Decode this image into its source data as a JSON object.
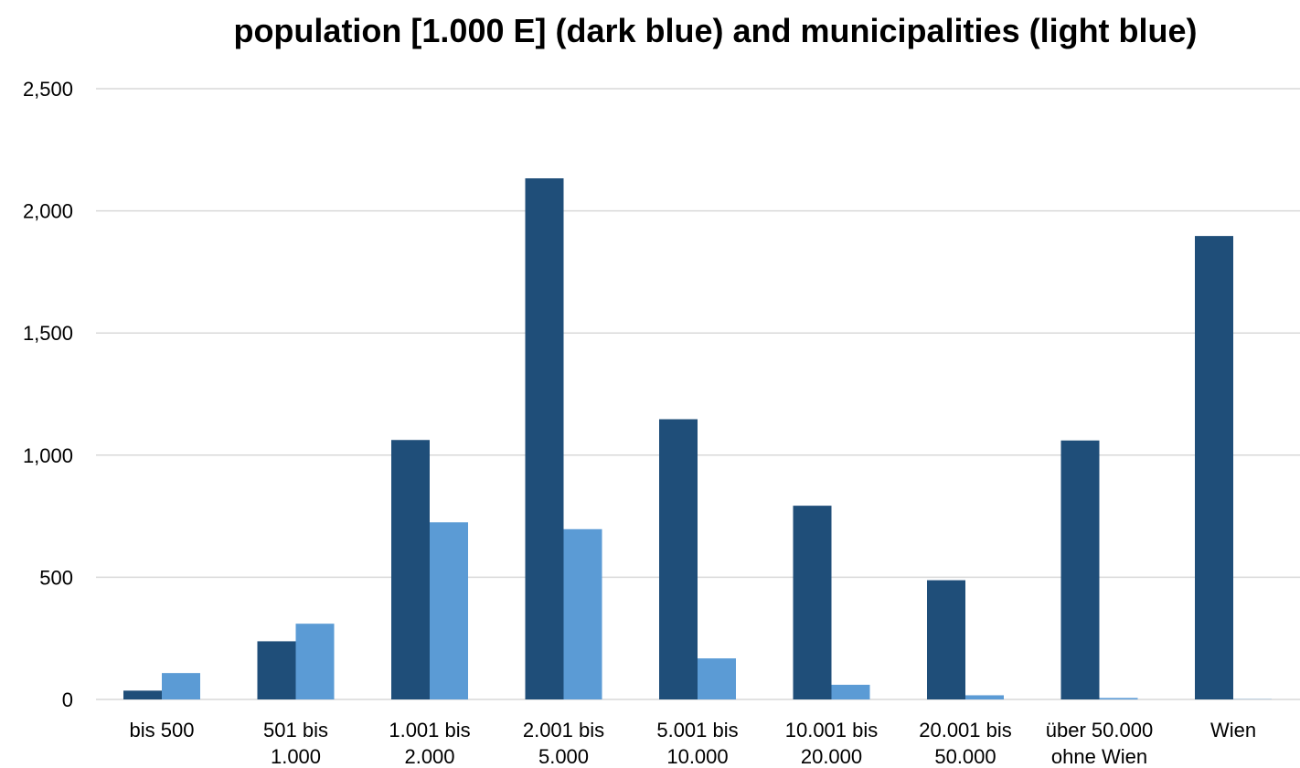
{
  "chart_data": {
    "type": "bar",
    "title": "population [1.000 E] (dark blue) and municipalities (light blue)",
    "xlabel": "",
    "ylabel": "",
    "categories": [
      [
        "bis 500"
      ],
      [
        "501 bis",
        "1.000"
      ],
      [
        "1.001 bis",
        "2.000"
      ],
      [
        "2.001 bis",
        "5.000"
      ],
      [
        "5.001 bis",
        "10.000"
      ],
      [
        "10.001 bis",
        "20.000"
      ],
      [
        "20.001 bis",
        "50.000"
      ],
      [
        "über 50.000",
        "ohne Wien"
      ],
      [
        "Wien"
      ]
    ],
    "series": [
      {
        "color": "#1f4e79",
        "values": [
          36,
          238,
          1062,
          2133,
          1147,
          793,
          488,
          1060,
          1897
        ]
      },
      {
        "color": "#5b9bd5",
        "values": [
          108,
          310,
          725,
          697,
          168,
          60,
          17,
          6,
          1
        ]
      }
    ],
    "ylim": [
      0,
      2500
    ],
    "yticks": [
      0,
      500,
      1000,
      1500,
      2000,
      2500
    ],
    "ytick_labels": [
      "0",
      "500",
      "1,000",
      "1,500",
      "2,000",
      "2,500"
    ],
    "grid": true,
    "gridline_color": "#d9d9d9",
    "legend": "none"
  }
}
